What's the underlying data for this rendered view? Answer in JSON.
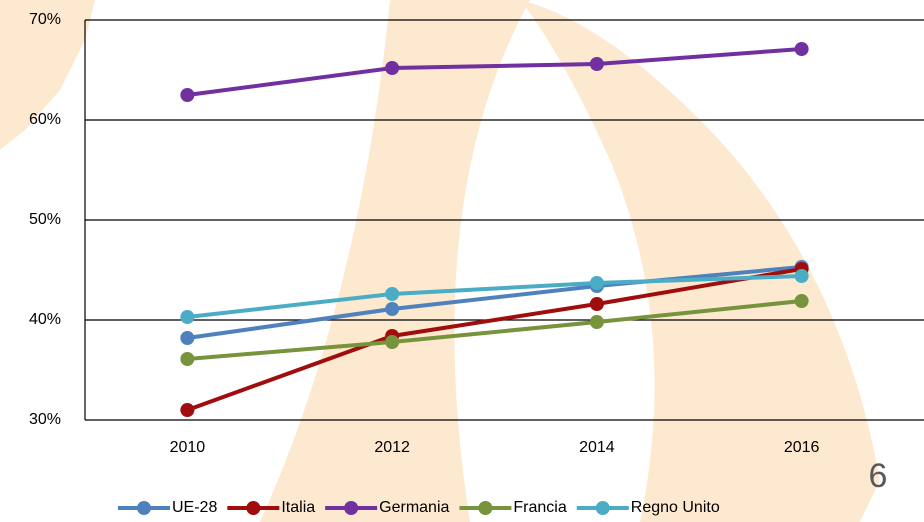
{
  "page_number": "6",
  "chart_data": {
    "type": "line",
    "categories": [
      "2010",
      "2012",
      "2014",
      "2016"
    ],
    "series": [
      {
        "name": "UE-28",
        "color": "#4f81bd",
        "values": [
          38.2,
          41.1,
          43.4,
          45.3
        ]
      },
      {
        "name": "Italia",
        "color": "#a00d0d",
        "values": [
          31.0,
          38.4,
          41.6,
          45.1
        ]
      },
      {
        "name": "Germania",
        "color": "#7030a0",
        "values": [
          62.5,
          65.2,
          65.6,
          67.1
        ]
      },
      {
        "name": "Francia",
        "color": "#77933c",
        "values": [
          36.1,
          37.8,
          39.8,
          41.9
        ]
      },
      {
        "name": "Regno Unito",
        "color": "#4bacc6",
        "values": [
          40.3,
          42.6,
          43.7,
          44.4
        ]
      }
    ],
    "ylim": [
      30,
      70
    ],
    "yticks": [
      {
        "value": 30,
        "label": "30%"
      },
      {
        "value": 40,
        "label": "40%"
      },
      {
        "value": 50,
        "label": "50%"
      },
      {
        "value": 60,
        "label": "60%"
      },
      {
        "value": 70,
        "label": "70%"
      }
    ],
    "grid": true,
    "legend": "bottom"
  }
}
